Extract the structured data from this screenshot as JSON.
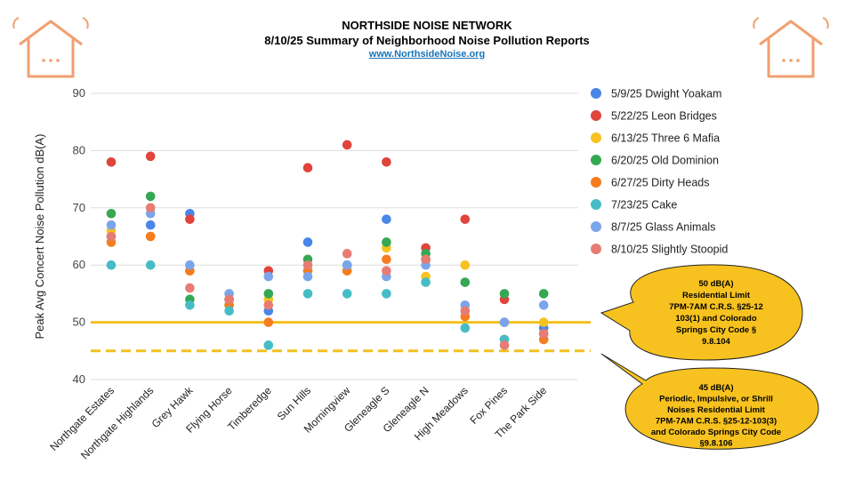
{
  "header": {
    "title": "NORTHSIDE NOISE NETWORK",
    "subtitle": "8/10/25 Summary of Neighborhood Noise Pollution Reports",
    "link": "www.NorthsideNoise.org"
  },
  "icons": [
    "house-wifi-icon",
    "house-wifi-icon"
  ],
  "colors": {
    "house_icon": "#f0a070",
    "limit_line": "#f2c01e",
    "callout_fill": "#f7c21f",
    "grid": "#dddddd"
  },
  "callouts": [
    {
      "lines": [
        "50 dB(A)",
        "Residential Limit",
        "7PM-7AM C.R.S. §25-12",
        "103(1) and Colorado",
        "Springs City Code §",
        "9.8.104"
      ]
    },
    {
      "lines": [
        "45 dB(A)",
        "Periodic, Impulsive, or Shrill",
        "Noises Residential Limit",
        "7PM-7AM C.R.S. §25-12-103(3)",
        "and Colorado Springs City Code",
        "§9.8.106"
      ]
    }
  ],
  "chart_data": {
    "type": "scatter",
    "title": "",
    "xlabel": "",
    "ylabel": "Peak Avg Concert Noise Pollution dB(A)",
    "ylim": [
      40,
      90
    ],
    "yticks": [
      "40",
      "50",
      "60",
      "70",
      "80",
      "90"
    ],
    "grid": true,
    "legend_position": "right",
    "categories": [
      "Northgate Estates",
      "Northgate Highlands",
      "Grey Hawk",
      "Flying Horse",
      "Timberedge",
      "Sun Hills",
      "Morningview",
      "Gleneagle S",
      "Gleneagle N",
      "High Meadows",
      "Fox Pines",
      "The Park Side"
    ],
    "reference_lines": [
      {
        "value": 50,
        "style": "solid",
        "color": "#f2c01e"
      },
      {
        "value": 45,
        "style": "dashed",
        "color": "#f2c01e"
      }
    ],
    "series": [
      {
        "name": "5/9/25 Dwight Yoakam",
        "color": "#4a86e8",
        "values": [
          65,
          67,
          69,
          54,
          52,
          64,
          60,
          68,
          61,
          52,
          50,
          49
        ]
      },
      {
        "name": "5/22/25 Leon Bridges",
        "color": "#e0443a",
        "values": [
          78,
          79,
          68,
          54,
          59,
          77,
          81,
          78,
          63,
          68,
          54,
          48
        ]
      },
      {
        "name": "6/13/25 Three 6 Mafia",
        "color": "#f7c21f",
        "values": [
          66,
          65,
          59,
          54,
          54,
          59,
          59,
          63,
          58,
          60,
          50,
          50
        ]
      },
      {
        "name": "6/20/25 Old Dominion",
        "color": "#34a853",
        "values": [
          69,
          72,
          54,
          53,
          55,
          61,
          60,
          64,
          62,
          57,
          55,
          55
        ]
      },
      {
        "name": "6/27/25 Dirty Heads",
        "color": "#f57c1f",
        "values": [
          64,
          65,
          59,
          53,
          50,
          59,
          59,
          61,
          61,
          51,
          47,
          47
        ]
      },
      {
        "name": "7/23/25 Cake",
        "color": "#46bdc6",
        "values": [
          60,
          60,
          53,
          52,
          46,
          55,
          55,
          55,
          57,
          49,
          47,
          48
        ]
      },
      {
        "name": "8/7/25 Glass Animals",
        "color": "#7ba5ea",
        "values": [
          67,
          69,
          60,
          55,
          58,
          58,
          60,
          58,
          60,
          53,
          50,
          53
        ]
      },
      {
        "name": "8/10/25 Slightly Stoopid",
        "color": "#e67c73",
        "values": [
          65,
          70,
          56,
          54,
          53,
          60,
          62,
          59,
          61,
          52,
          46,
          48
        ]
      }
    ]
  }
}
